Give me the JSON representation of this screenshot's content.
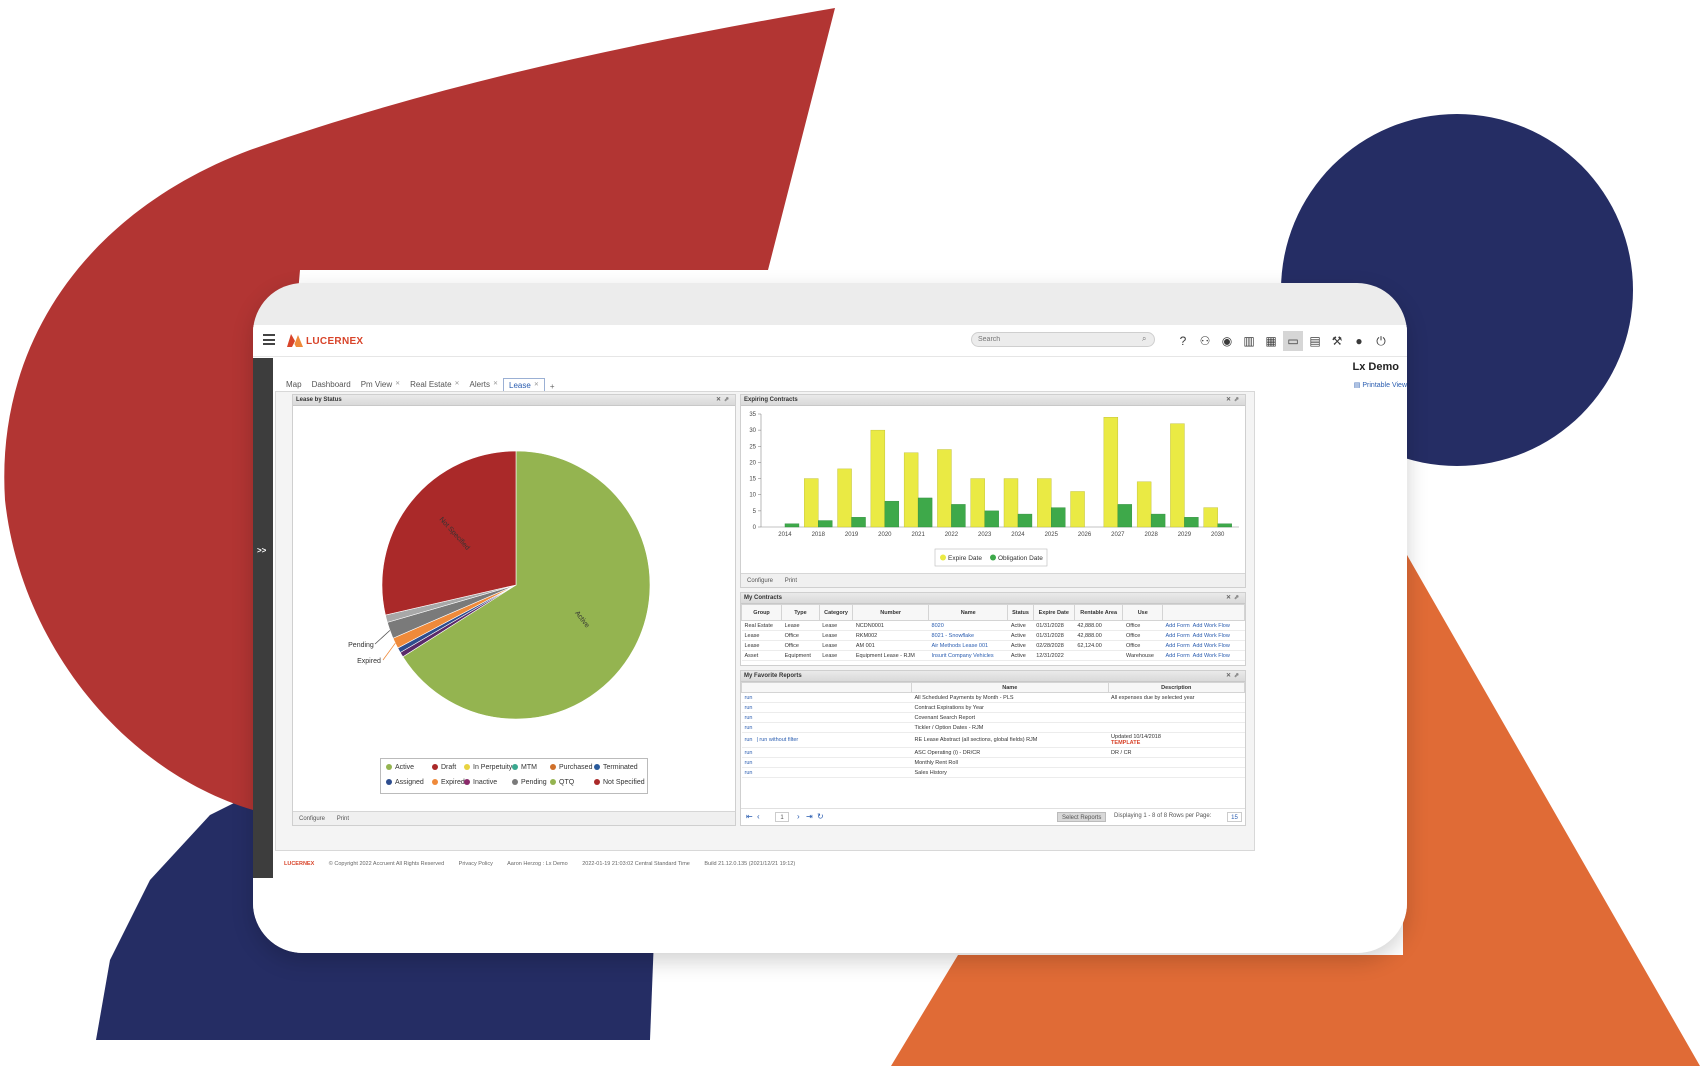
{
  "colors": {
    "red": "#b23533",
    "navy": "#252d64",
    "orange": "#e06b36",
    "yellow": "#eaea44",
    "green": "#3ea94a",
    "pie_active": "#94b450",
    "pie_not_specified": "#aa2929"
  },
  "app": {
    "brand": "LUCERNEX",
    "search_placeholder": "Search",
    "user_title": "Lx Demo",
    "printable_view": "Printable View",
    "toolbar_icons": [
      "help-icon",
      "hierarchy-icon",
      "eye-icon",
      "bar-chart-icon",
      "calendar-icon",
      "monitor-icon",
      "briefcase-icon",
      "wrench-icon",
      "user-icon",
      "power-icon"
    ],
    "sidebar_toggle": ">>",
    "tabs": [
      {
        "label": "Map"
      },
      {
        "label": "Dashboard"
      },
      {
        "label": "Pm View"
      },
      {
        "label": "Real Estate"
      },
      {
        "label": "Alerts"
      },
      {
        "label": "Lease"
      }
    ],
    "add_tab": "+"
  },
  "lease_by_status": {
    "title": "Lease by Status",
    "footer": [
      "Configure",
      "Print"
    ],
    "pie_labels": {
      "active": "Active",
      "not_specified": "Not Specified",
      "pending": "Pending",
      "expired": "Expired"
    },
    "legend": [
      {
        "label": "Active",
        "color": "#94b450"
      },
      {
        "label": "Draft",
        "color": "#aa2929"
      },
      {
        "label": "In Perpetuity",
        "color": "#e8d340"
      },
      {
        "label": "MTM",
        "color": "#3aa88f"
      },
      {
        "label": "Purchased",
        "color": "#d0702a"
      },
      {
        "label": "Terminated",
        "color": "#2a5b9c"
      },
      {
        "label": "Assigned",
        "color": "#2d4d8e"
      },
      {
        "label": "Expired",
        "color": "#ef8a3a"
      },
      {
        "label": "Inactive",
        "color": "#8a2a6a"
      },
      {
        "label": "Pending",
        "color": "#7a7a7a"
      },
      {
        "label": "QTQ",
        "color": "#94b450"
      },
      {
        "label": "Not Specified",
        "color": "#aa2929"
      }
    ]
  },
  "chart_data": [
    {
      "type": "pie",
      "title": "Lease by Status",
      "slices": [
        {
          "label": "Active",
          "value": 66.0,
          "color": "#94b450"
        },
        {
          "label": "Inactive",
          "value": 0.6,
          "color": "#5a2a6a"
        },
        {
          "label": "Assigned",
          "value": 0.6,
          "color": "#2d4d8e"
        },
        {
          "label": "Expired",
          "value": 1.3,
          "color": "#ef8a3a"
        },
        {
          "label": "Pending",
          "value": 2.0,
          "color": "#7a7a7a"
        },
        {
          "label": "QTQ",
          "value": 0.9,
          "color": "#a8a8a8"
        },
        {
          "label": "Not Specified",
          "value": 28.6,
          "color": "#aa2929"
        }
      ]
    },
    {
      "type": "bar",
      "title": "Expiring Contracts",
      "categories": [
        "2014",
        "2018",
        "2019",
        "2020",
        "2021",
        "2022",
        "2023",
        "2024",
        "2025",
        "2026",
        "2027",
        "2028",
        "2029",
        "2030"
      ],
      "series": [
        {
          "name": "Expire Date",
          "color": "#eaea44",
          "values": [
            0,
            15,
            18,
            30,
            23,
            24,
            15,
            15,
            15,
            11,
            34,
            14,
            32,
            6
          ]
        },
        {
          "name": "Obligation Date",
          "color": "#3ea94a",
          "values": [
            1,
            2,
            3,
            8,
            9,
            7,
            5,
            4,
            6,
            0,
            7,
            4,
            3,
            1
          ]
        }
      ],
      "ylim": [
        0,
        35
      ],
      "yticks": [
        0,
        5,
        10,
        15,
        20,
        25,
        30,
        35
      ]
    }
  ],
  "expiring": {
    "title": "Expiring Contracts",
    "footer": [
      "Configure",
      "Print"
    ]
  },
  "my_contracts": {
    "title": "My Contracts",
    "columns": [
      "Group",
      "Type",
      "Category",
      "Number",
      "Name",
      "Status",
      "Expire Date",
      "Rentable Area",
      "Use"
    ],
    "rows": [
      [
        "Real Estate",
        "Lease",
        "Lease",
        "NCDN0001",
        "8020",
        "Active",
        "01/31/2028",
        "42,888.00",
        "Office",
        "Add Form",
        "Add Work Flow"
      ],
      [
        "Lease",
        "Office",
        "Lease",
        "RKM002",
        "8021 - Snowflake",
        "Active",
        "01/31/2028",
        "42,888.00",
        "Office",
        "Add Form",
        "Add Work Flow"
      ],
      [
        "Lease",
        "Office",
        "Lease",
        "AM 001",
        "Air Methods Lease 001",
        "Active",
        "02/28/2028",
        "62,124.00",
        "Office",
        "Add Form",
        "Add Work Flow"
      ],
      [
        "Asset",
        "Equipment",
        "Lease",
        "Equipment Lease - RJM",
        "Insurit Company Vehicles",
        "Active",
        "12/31/2022",
        "",
        "Warehouse",
        "Add Form",
        "Add Work Flow"
      ]
    ]
  },
  "favorites": {
    "title": "My Favorite Reports",
    "columns": [
      "Name",
      "Description"
    ],
    "rows": [
      {
        "action": "run",
        "extra": "",
        "name": "All Scheduled Payments by Month - PLS",
        "desc": "All expenses due by selected year",
        "desc2": ""
      },
      {
        "action": "run",
        "extra": "",
        "name": "Contract Expirations by Year",
        "desc": "",
        "desc2": ""
      },
      {
        "action": "run",
        "extra": "",
        "name": "Covenant Search Report",
        "desc": "",
        "desc2": ""
      },
      {
        "action": "run",
        "extra": "",
        "name": "Tickler / Option Dates - RJM",
        "desc": "",
        "desc2": ""
      },
      {
        "action": "run",
        "extra": "| run without filter",
        "name": "RE Lease Abstract (all sections, global fields) RJM",
        "desc": "Updated 10/14/2018",
        "desc2": "TEMPLATE"
      },
      {
        "action": "run",
        "extra": "",
        "name": "ASC Operating (i) - DR/CR",
        "desc": "DR / CR",
        "desc2": ""
      },
      {
        "action": "run",
        "extra": "",
        "name": "Monthly Rent Roll",
        "desc": "",
        "desc2": ""
      },
      {
        "action": "run",
        "extra": "",
        "name": "Sales History",
        "desc": "",
        "desc2": ""
      }
    ],
    "page": "1",
    "select_reports": "Select Reports",
    "displaying": "Displaying 1 - 8 of 8  Rows per Page:",
    "rows_per_page": "15"
  },
  "footer": {
    "brand": "LUCERNEX",
    "copyright": "© Copyright 2022 Accruent All Rights Reserved",
    "privacy": "Privacy Policy",
    "user": "Aaron Herzog : Lx Demo",
    "datetime": "2022-01-19 21:03:02 Central Standard Time",
    "build": "Build 21.12.0.135 (2021/12/21 19:12)"
  }
}
